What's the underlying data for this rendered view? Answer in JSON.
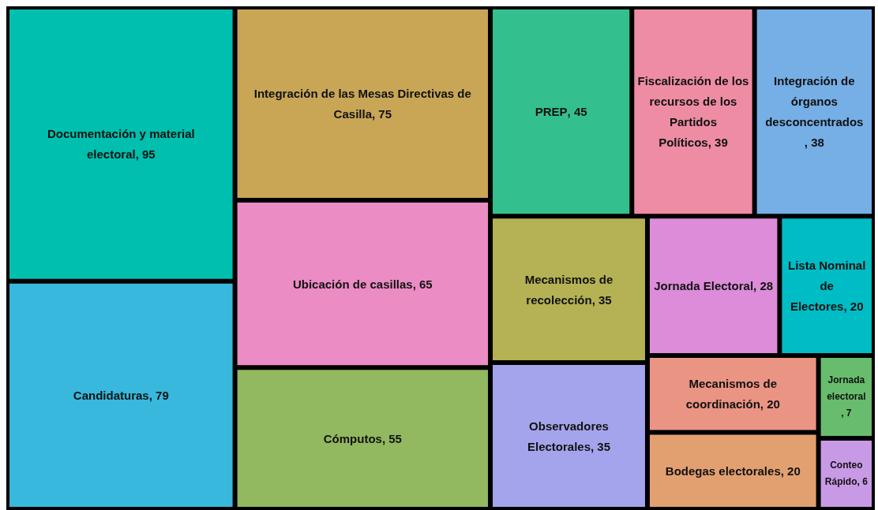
{
  "chart_data": {
    "type": "other",
    "categories": [
      "Documentación y material electoral",
      "Candidaturas",
      "Integración de las Mesas Directivas de Casilla",
      "Ubicación de casillas",
      "Cómputos",
      "PREP",
      "Fiscalización de los recursos de los Partidos Políticos",
      "Integración de órganos desconcentrados",
      "Observadores Electorales",
      "Mecanismos de recolección",
      "Jornada Electoral",
      "Bodegas electorales",
      "Mecanismos de coordinación",
      "Lista Nominal de Electores",
      "Jornada electoral",
      "Conteo Rápido"
    ],
    "values": [
      95,
      79,
      75,
      65,
      55,
      45,
      39,
      38,
      35,
      35,
      28,
      20,
      20,
      20,
      7,
      6
    ],
    "value_labels": [
      ", 95",
      ", 79",
      ", 75",
      ", 65",
      ", 55",
      ", 45",
      ", 39",
      ", 38",
      ", 35",
      ", 35",
      ", 28",
      ", 20",
      ", 20",
      ", 20",
      ", 7",
      ", 6"
    ],
    "colors": [
      "#00bfae",
      "#38b8dc",
      "#c8a656",
      "#ec8cc4",
      "#92b860",
      "#34c08e",
      "#ee8ca4",
      "#76aee6",
      "#a4a4ec",
      "#b4b254",
      "#dc8cd8",
      "#e2a070",
      "#ea9484",
      "#00bcc4",
      "#68bc6e",
      "#c89ae6"
    ]
  }
}
